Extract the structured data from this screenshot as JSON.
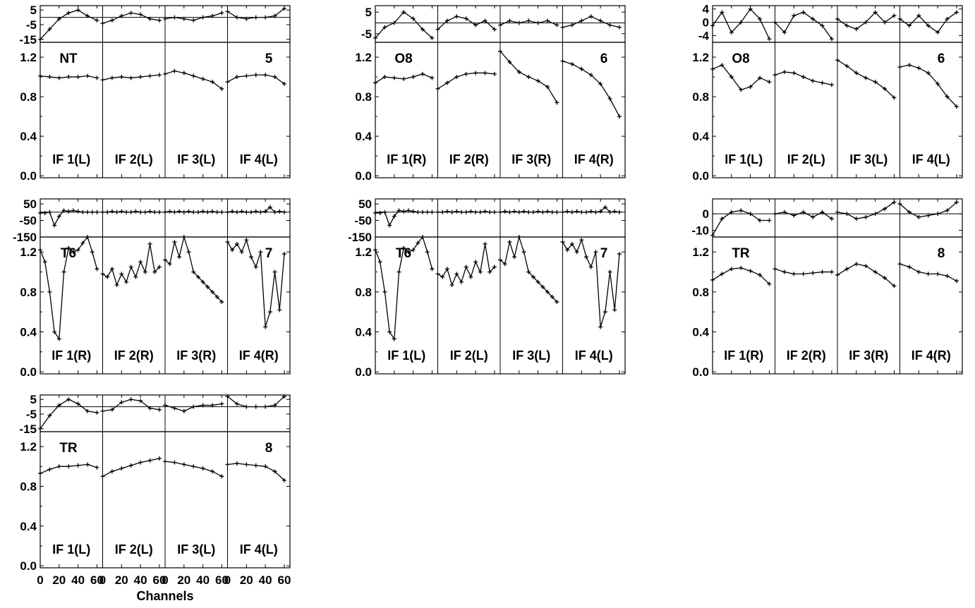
{
  "figure": {
    "xlabel": "Channels"
  },
  "chart_data": [
    {
      "type": "line",
      "block": 1,
      "ant_label": "NT",
      "num_label": "5",
      "phase_ticks": [
        "5",
        "-5",
        "-15"
      ],
      "phase_ylim": [
        -17,
        8
      ],
      "phase_ref": 0,
      "amp_ticks": [
        "1.2",
        "0.8",
        "0.4",
        "0.0"
      ],
      "amp_ylim": [
        -0.02,
        1.35
      ],
      "xlim": [
        0,
        66
      ],
      "if_labels": [
        "IF 1(L)",
        "IF 2(L)",
        "IF 3(L)",
        "IF 4(L)"
      ],
      "x": [
        0,
        10,
        20,
        30,
        40,
        50,
        60
      ],
      "phase": [
        [
          -15,
          -8,
          -1,
          3,
          5,
          1,
          -2
        ],
        [
          -4,
          -2,
          1,
          3,
          2,
          -1,
          -2
        ],
        [
          -1,
          0,
          -1,
          -2,
          0,
          1,
          3
        ],
        [
          4,
          0,
          -1,
          0,
          0,
          1,
          6
        ]
      ],
      "amp": [
        [
          1.01,
          1.0,
          0.99,
          1.0,
          1.0,
          1.01,
          0.99
        ],
        [
          0.97,
          0.99,
          1.0,
          0.99,
          1.0,
          1.01,
          1.02
        ],
        [
          1.03,
          1.06,
          1.04,
          1.01,
          0.98,
          0.95,
          0.88
        ],
        [
          0.95,
          1.0,
          1.01,
          1.02,
          1.02,
          1.0,
          0.93
        ]
      ]
    },
    {
      "type": "line",
      "block": 2,
      "ant_label": "O8",
      "num_label": "6",
      "phase_ticks": [
        "5",
        "-5"
      ],
      "phase_ylim": [
        -9,
        8
      ],
      "phase_ref": 0,
      "amp_ticks": [
        "1.2",
        "0.8",
        "0.4",
        "0.0"
      ],
      "amp_ylim": [
        -0.02,
        1.35
      ],
      "xlim": [
        0,
        66
      ],
      "if_labels": [
        "IF 1(R)",
        "IF 2(R)",
        "IF 3(R)",
        "IF 4(R)"
      ],
      "x": [
        0,
        10,
        20,
        30,
        40,
        50,
        60
      ],
      "phase": [
        [
          -7,
          -2,
          0,
          5,
          2,
          -3,
          -7
        ],
        [
          -3,
          1,
          3,
          2,
          -1,
          1,
          -3
        ],
        [
          -1,
          1,
          0,
          1,
          0,
          1,
          -1
        ],
        [
          -2,
          -1,
          1,
          3,
          1,
          -1,
          -2
        ]
      ],
      "amp": [
        [
          0.94,
          1.0,
          0.99,
          0.98,
          1.0,
          1.03,
          0.99
        ],
        [
          0.88,
          0.94,
          1.0,
          1.03,
          1.04,
          1.04,
          1.03
        ],
        [
          1.26,
          1.15,
          1.05,
          1.0,
          0.96,
          0.9,
          0.74
        ],
        [
          1.16,
          1.13,
          1.08,
          1.02,
          0.93,
          0.78,
          0.6
        ]
      ]
    },
    {
      "type": "line",
      "block": 3,
      "ant_label": "O8",
      "num_label": "6",
      "phase_ticks": [
        "4",
        "0",
        "-4"
      ],
      "phase_ylim": [
        -6,
        5
      ],
      "phase_ref": 0,
      "amp_ticks": [
        "1.2",
        "0.8",
        "0.4",
        "0.0"
      ],
      "amp_ylim": [
        -0.02,
        1.35
      ],
      "xlim": [
        0,
        66
      ],
      "if_labels": [
        "IF 1(L)",
        "IF 2(L)",
        "IF 3(L)",
        "IF 4(L)"
      ],
      "x": [
        0,
        10,
        20,
        30,
        40,
        50,
        60
      ],
      "phase": [
        [
          -1,
          3,
          -3,
          0,
          4,
          1,
          -5
        ],
        [
          0,
          -3,
          2,
          3,
          1,
          -1,
          -5
        ],
        [
          1,
          -1,
          -2,
          0,
          3,
          0,
          2
        ],
        [
          1,
          -1,
          2,
          -1,
          -3,
          1,
          3
        ]
      ],
      "amp": [
        [
          1.08,
          1.12,
          1.0,
          0.87,
          0.9,
          0.99,
          0.95
        ],
        [
          1.02,
          1.05,
          1.04,
          1.0,
          0.96,
          0.94,
          0.92
        ],
        [
          1.17,
          1.11,
          1.04,
          0.99,
          0.95,
          0.88,
          0.79
        ],
        [
          1.1,
          1.12,
          1.09,
          1.04,
          0.93,
          0.8,
          0.7
        ]
      ]
    },
    {
      "type": "line",
      "block": 4,
      "ant_label": "T6",
      "num_label": "7",
      "phase_ticks": [
        "50",
        "-50",
        "-150"
      ],
      "phase_ylim": [
        -150,
        80
      ],
      "phase_ref": 0,
      "amp_ticks": [
        "1.2",
        "0.8",
        "0.4",
        "0.0"
      ],
      "amp_ylim": [
        -0.02,
        1.35
      ],
      "xlim": [
        0,
        66
      ],
      "if_labels": [
        "IF 1(R)",
        "IF 2(R)",
        "IF 3(R)",
        "IF 4(R)"
      ],
      "x": [
        0,
        5,
        10,
        15,
        20,
        25,
        30,
        35,
        40,
        45,
        50,
        55,
        60
      ],
      "phase": [
        [
          -5,
          -5,
          0,
          -80,
          -25,
          10,
          5,
          10,
          5,
          0,
          0,
          0,
          0
        ],
        [
          0,
          0,
          5,
          0,
          5,
          0,
          0,
          5,
          0,
          0,
          5,
          0,
          0
        ],
        [
          0,
          5,
          0,
          5,
          0,
          5,
          0,
          0,
          5,
          0,
          5,
          0,
          0
        ],
        [
          0,
          5,
          0,
          5,
          0,
          0,
          5,
          0,
          5,
          30,
          0,
          5,
          0
        ]
      ],
      "amp": [
        [
          1.22,
          1.1,
          0.8,
          0.4,
          0.33,
          1.0,
          1.24,
          1.2,
          1.22,
          1.29,
          1.35,
          1.2,
          1.03
        ],
        [
          0.98,
          0.95,
          1.03,
          0.87,
          0.98,
          0.9,
          1.05,
          0.95,
          1.1,
          1.0,
          1.28,
          1.0,
          1.05
        ],
        [
          1.12,
          1.08,
          1.3,
          1.15,
          1.35,
          1.2,
          1.0,
          0.95,
          0.9,
          0.85,
          0.8,
          0.75,
          0.7
        ],
        [
          1.3,
          1.22,
          1.28,
          1.2,
          1.32,
          1.15,
          1.05,
          1.2,
          0.45,
          0.6,
          1.0,
          0.62,
          1.18
        ]
      ]
    },
    {
      "type": "line",
      "block": 5,
      "ant_label": "T6",
      "num_label": "7",
      "phase_ticks": [
        "50",
        "-50",
        "-150"
      ],
      "phase_ylim": [
        -150,
        80
      ],
      "phase_ref": 0,
      "amp_ticks": [
        "1.2",
        "0.8",
        "0.4",
        "0.0"
      ],
      "amp_ylim": [
        -0.02,
        1.35
      ],
      "xlim": [
        0,
        66
      ],
      "if_labels": [
        "IF 1(L)",
        "IF 2(L)",
        "IF 3(L)",
        "IF 4(L)"
      ],
      "x": [
        0,
        5,
        10,
        15,
        20,
        25,
        30,
        35,
        40,
        45,
        50,
        55,
        60
      ],
      "phase": [
        [
          -5,
          -5,
          0,
          -80,
          -25,
          10,
          5,
          10,
          5,
          0,
          0,
          0,
          0
        ],
        [
          0,
          0,
          5,
          0,
          5,
          0,
          0,
          5,
          0,
          0,
          5,
          0,
          0
        ],
        [
          0,
          5,
          0,
          5,
          0,
          5,
          0,
          0,
          5,
          0,
          5,
          0,
          0
        ],
        [
          0,
          5,
          0,
          5,
          0,
          0,
          5,
          0,
          5,
          30,
          0,
          5,
          0
        ]
      ],
      "amp": [
        [
          1.22,
          1.1,
          0.8,
          0.4,
          0.33,
          1.0,
          1.24,
          1.2,
          1.22,
          1.29,
          1.35,
          1.2,
          1.03
        ],
        [
          0.98,
          0.95,
          1.03,
          0.87,
          0.98,
          0.9,
          1.05,
          0.95,
          1.1,
          1.0,
          1.28,
          1.0,
          1.05
        ],
        [
          1.12,
          1.08,
          1.3,
          1.15,
          1.35,
          1.2,
          1.0,
          0.95,
          0.9,
          0.85,
          0.8,
          0.75,
          0.7
        ],
        [
          1.3,
          1.22,
          1.28,
          1.2,
          1.32,
          1.15,
          1.05,
          1.2,
          0.45,
          0.6,
          1.0,
          0.62,
          1.18
        ]
      ]
    },
    {
      "type": "line",
      "block": 6,
      "ant_label": "TR",
      "num_label": "8",
      "phase_ticks": [
        "0",
        "-10"
      ],
      "phase_ylim": [
        -14,
        9
      ],
      "phase_ref": 0,
      "amp_ticks": [
        "1.2",
        "0.8",
        "0.4",
        "0.0"
      ],
      "amp_ylim": [
        -0.02,
        1.35
      ],
      "xlim": [
        0,
        66
      ],
      "if_labels": [
        "IF 1(R)",
        "IF 2(R)",
        "IF 3(R)",
        "IF 4(R)"
      ],
      "x": [
        0,
        10,
        20,
        30,
        40,
        50,
        60
      ],
      "phase": [
        [
          -13,
          -3,
          1,
          2,
          0,
          -4,
          -4
        ],
        [
          0,
          1,
          -1,
          1,
          -2,
          1,
          -3
        ],
        [
          1,
          0,
          -3,
          -2,
          0,
          3,
          7
        ],
        [
          6,
          1,
          -2,
          -1,
          0,
          2,
          7
        ]
      ],
      "amp": [
        [
          0.92,
          0.98,
          1.03,
          1.04,
          1.01,
          0.97,
          0.88
        ],
        [
          1.03,
          1.0,
          0.98,
          0.98,
          0.99,
          1.0,
          1.0
        ],
        [
          0.97,
          1.03,
          1.08,
          1.06,
          1.0,
          0.94,
          0.86
        ],
        [
          1.08,
          1.05,
          1.0,
          0.98,
          0.98,
          0.96,
          0.91
        ]
      ]
    },
    {
      "type": "line",
      "block": 7,
      "ant_label": "TR",
      "num_label": "8",
      "phase_ticks": [
        "5",
        "-5",
        "-15"
      ],
      "phase_ylim": [
        -17,
        8
      ],
      "phase_ref": 0,
      "amp_ticks": [
        "1.2",
        "0.8",
        "0.4",
        "0.0"
      ],
      "amp_ylim": [
        -0.02,
        1.35
      ],
      "xlim": [
        0,
        66
      ],
      "x_ticks": [
        "0",
        "20",
        "40",
        "60"
      ],
      "if_labels": [
        "IF 1(L)",
        "IF 2(L)",
        "IF 3(L)",
        "IF 4(L)"
      ],
      "x": [
        0,
        10,
        20,
        30,
        40,
        50,
        60
      ],
      "phase": [
        [
          -15,
          -6,
          1,
          5,
          2,
          -3,
          -4
        ],
        [
          -3,
          -2,
          3,
          5,
          4,
          -1,
          -2
        ],
        [
          1,
          -1,
          -3,
          0,
          1,
          1,
          2
        ],
        [
          7,
          2,
          0,
          0,
          0,
          1,
          7
        ]
      ],
      "amp": [
        [
          0.93,
          0.97,
          1.0,
          1.0,
          1.01,
          1.02,
          0.99
        ],
        [
          0.9,
          0.95,
          0.98,
          1.01,
          1.04,
          1.06,
          1.08
        ],
        [
          1.05,
          1.04,
          1.02,
          1.0,
          0.98,
          0.95,
          0.9
        ],
        [
          1.02,
          1.03,
          1.02,
          1.01,
          1.0,
          0.95,
          0.86
        ]
      ]
    }
  ]
}
